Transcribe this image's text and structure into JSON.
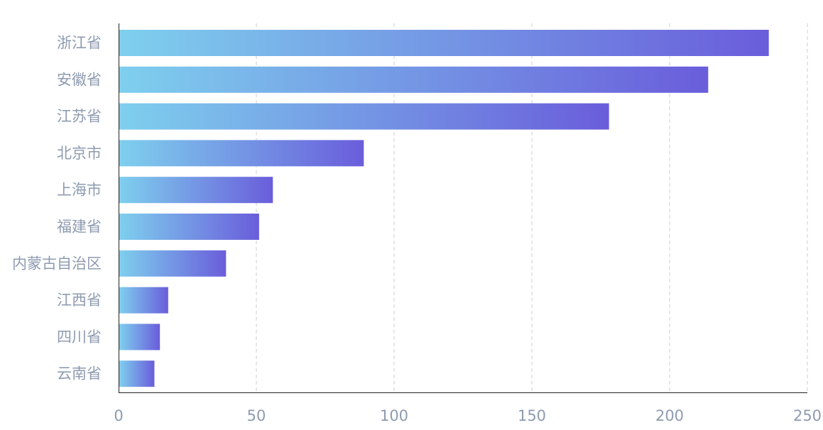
{
  "chart_data": {
    "type": "bar",
    "orientation": "horizontal",
    "categories": [
      "浙江省",
      "安徽省",
      "江苏省",
      "北京市",
      "上海市",
      "福建省",
      "内蒙古自治区",
      "江西省",
      "四川省",
      "云南省"
    ],
    "values": [
      236,
      214,
      178,
      89,
      56,
      51,
      39,
      18,
      15,
      13
    ],
    "x_ticks": [
      0,
      50,
      100,
      150,
      200,
      250
    ],
    "xlim": [
      0,
      250
    ],
    "title": "",
    "xlabel": "",
    "ylabel": "",
    "grid": "vertical-dashed",
    "legend": "none",
    "colors": {
      "bar_gradient_start": "#7ecfee",
      "bar_gradient_end": "#6a5ddb",
      "label_text": "#8e9bb0",
      "grid": "#c9ced6",
      "axis": "#222222"
    }
  }
}
